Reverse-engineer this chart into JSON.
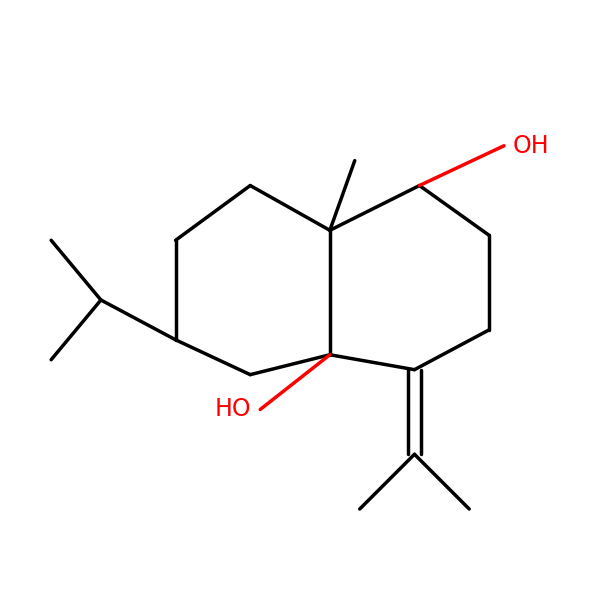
{
  "background_color": "#ffffff",
  "bond_color": "#000000",
  "oh_color": "#ff0000",
  "line_width": 2.5,
  "font_size": 17,
  "figsize": [
    6.0,
    6.0
  ],
  "dpi": 100
}
